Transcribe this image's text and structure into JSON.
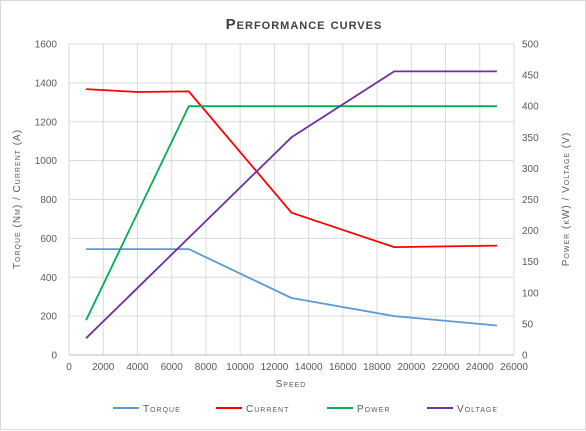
{
  "chart_data": {
    "type": "line",
    "title": "Performance curves",
    "xlabel": "Speed",
    "ylabel": "Torque (Nm) / Current (A)",
    "y2label": "Power (kW) / Voltage (V)",
    "xlim": [
      0,
      26000
    ],
    "xticks": [
      0,
      2000,
      4000,
      6000,
      8000,
      10000,
      12000,
      14000,
      16000,
      18000,
      20000,
      22000,
      24000,
      26000
    ],
    "ylim": [
      0,
      1600
    ],
    "yticks": [
      0,
      200,
      400,
      600,
      800,
      1000,
      1200,
      1400,
      1600
    ],
    "y2lim": [
      0,
      500
    ],
    "y2ticks": [
      0,
      50,
      100,
      150,
      200,
      250,
      300,
      350,
      400,
      450,
      500
    ],
    "grid": true,
    "legend_position": "bottom",
    "series": [
      {
        "name": "Torque",
        "axis": "left",
        "color": "#5b9bd5",
        "x": [
          1000,
          7000,
          13000,
          19000,
          25000
        ],
        "y": [
          545,
          545,
          293,
          200,
          152
        ]
      },
      {
        "name": "Current",
        "axis": "left",
        "color": "#ff0000",
        "x": [
          1000,
          4000,
          7000,
          13000,
          19000,
          25000
        ],
        "y": [
          1368,
          1353,
          1356,
          732,
          555,
          563
        ]
      },
      {
        "name": "Power",
        "axis": "right",
        "color": "#00b050",
        "x": [
          1000,
          7000,
          25000
        ],
        "y": [
          56,
          400,
          400
        ]
      },
      {
        "name": "Voltage",
        "axis": "right",
        "color": "#7030a0",
        "x": [
          1000,
          13000,
          19000,
          25000
        ],
        "y": [
          27,
          350,
          456,
          456
        ]
      }
    ]
  }
}
